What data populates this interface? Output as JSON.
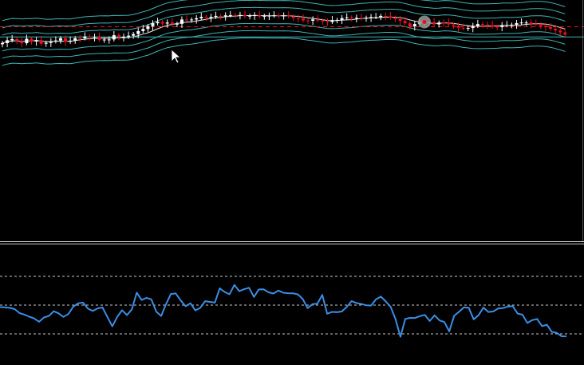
{
  "colors": {
    "background": "#000000",
    "bull_candle": "#ffffff",
    "bear_candle": "#e8101a",
    "bands": "#3fb3b5",
    "level_line": "#3fb3b5",
    "dashed_level": "#e8101a",
    "oscillator": "#3a8ee6",
    "oscillator_levels": "#c8c8c8",
    "divider": "#c8c8c8"
  },
  "cursor": {
    "icon": "arrow-cursor-icon"
  },
  "chart_data": [
    {
      "type": "candlestick",
      "title": "",
      "grid": false,
      "bars": 117,
      "ylim": [
        0,
        100
      ],
      "close": [
        63.1,
        66.6,
        68.1,
        65.6,
        62.9,
        68.5,
        65.0,
        66.8,
        62.3,
        63.4,
        65.2,
        66.3,
        69.2,
        64.8,
        66.1,
        69.1,
        69.0,
        71.3,
        70.3,
        71.0,
        67.2,
        67.5,
        67.6,
        72.9,
        70.5,
        71.0,
        72.3,
        74.4,
        78.1,
        80.7,
        84.3,
        87.9,
        89.6,
        87.5,
        88.8,
        86.9,
        87.2,
        92.6,
        92.4,
        92.6,
        94.1,
        95.9,
        94.6,
        95.9,
        97.1,
        96.5,
        97.8,
        98.1,
        98.0,
        98.3,
        96.6,
        97.3,
        97.9,
        96.3,
        97.1,
        97.4,
        97.8,
        97.6,
        97.6,
        96.6,
        94.5,
        94.0,
        91.4,
        91.0,
        92.7,
        91.4,
        90.1,
        89.5,
        91.8,
        92.1,
        94.3,
        95.2,
        94.1,
        94.7,
        93.8,
        94.8,
        95.6,
        95.6,
        97.1,
        96.8,
        95.0,
        93.1,
        90.8,
        87.8,
        84.0,
        86.9,
        88.9,
        89.5,
        89.3,
        86.5,
        88.8,
        88.7,
        86.4,
        84.8,
        82.2,
        81.9,
        81.9,
        84.5,
        86.9,
        86.2,
        85.8,
        83.6,
        83.1,
        85.4,
        85.5,
        86.1,
        88.1,
        88.8,
        88.8,
        87.1,
        86.7,
        84.6,
        83.1,
        81.0,
        78.8,
        76.5,
        73.6
      ],
      "bands": [
        {
          "name": "",
          "offset": 28
        },
        {
          "name": "",
          "offset": 19
        },
        {
          "name": "",
          "offset": 10
        },
        {
          "name": "",
          "offset": -10
        },
        {
          "name": "",
          "offset": -19
        },
        {
          "name": "",
          "offset": -28
        }
      ],
      "horizontal_lines": [
        {
          "style": "dashed",
          "value": 83.5
        },
        {
          "style": "solid",
          "value": 70.8
        }
      ],
      "highlight_bar": 87
    },
    {
      "type": "line",
      "title": "",
      "grid": false,
      "ylim": [
        0,
        100
      ],
      "levels": [
        80,
        50,
        20
      ],
      "series": [
        {
          "name": "",
          "values": [
            47.9,
            47.6,
            47.2,
            45.8,
            41.7,
            40.1,
            37.9,
            36.1,
            32.6,
            37.1,
            38.7,
            43.6,
            41.4,
            37.7,
            40.7,
            48.3,
            51.8,
            52.6,
            46.3,
            43.9,
            46.6,
            47.5,
            37.4,
            27.8,
            37.7,
            44.7,
            39.6,
            45.6,
            63.0,
            55.3,
            57.6,
            56.0,
            43.1,
            38.7,
            51.0,
            61.6,
            62.2,
            54.8,
            48.8,
            51.9,
            44.5,
            47.1,
            54.1,
            53.3,
            52.6,
            67.5,
            63.7,
            61.3,
            71.1,
            64.5,
            66.6,
            68.1,
            58.5,
            66.3,
            66.4,
            63.3,
            62.1,
            65.2,
            62.9,
            62.4,
            62.3,
            61.2,
            56.3,
            46.8,
            51.0,
            51.5,
            60.6,
            41.0,
            42.9,
            42.6,
            43.3,
            48.0,
            54.2,
            52.2,
            51.2,
            49.8,
            49.6,
            56.1,
            58.8,
            53.8,
            48.1,
            35.2,
            17.0,
            35.6,
            36.7,
            36.6,
            38.5,
            39.8,
            33.4,
            39.3,
            34.0,
            32.3,
            22.6,
            38.8,
            43.0,
            47.6,
            47.2,
            35.2,
            39.4,
            47.4,
            42.8,
            43.3,
            46.4,
            46.9,
            48.4,
            48.9,
            41.2,
            40.0,
            31.3,
            34.3,
            35.5,
            28.1,
            29.5,
            22.1,
            21.1,
            17.5,
            17.4
          ]
        }
      ]
    }
  ]
}
